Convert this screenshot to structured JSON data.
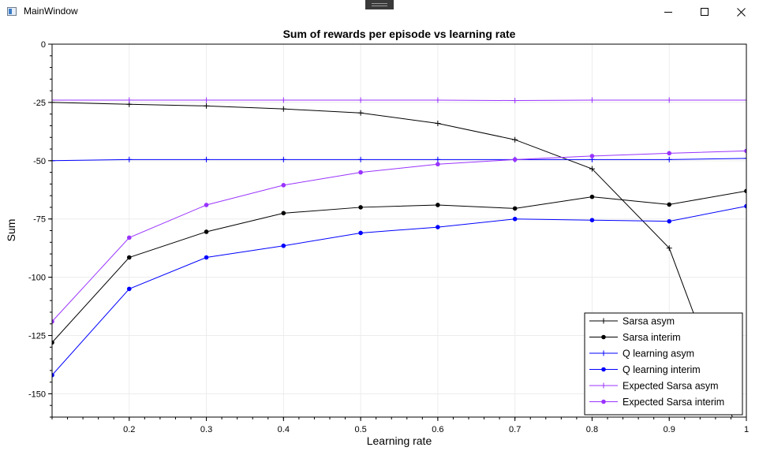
{
  "window": {
    "title": "MainWindow",
    "minimize_icon": "minimize-icon",
    "maximize_icon": "maximize-icon",
    "close_icon": "close-icon"
  },
  "chart_data": {
    "type": "line",
    "title": "Sum of rewards per episode vs learning rate",
    "xlabel": "Learning rate",
    "ylabel": "Sum",
    "xlim": [
      0.1,
      1.0
    ],
    "ylim": [
      -160,
      0
    ],
    "x_ticks": [
      0.2,
      0.3,
      0.4,
      0.5,
      0.6,
      0.7,
      0.8,
      0.9,
      1
    ],
    "x_tick_labels": [
      "0.2",
      "0.3",
      "0.4",
      "0.5",
      "0.6",
      "0.7",
      "0.8",
      "0.9",
      "1"
    ],
    "y_ticks": [
      0,
      -25,
      -50,
      -75,
      -100,
      -125,
      -150
    ],
    "y_tick_labels": [
      "0",
      "-25",
      "-50",
      "-75",
      "-100",
      "-125",
      "-150"
    ],
    "grid": true,
    "legend_position": "bottom-right",
    "x": [
      0.1,
      0.2,
      0.3,
      0.4,
      0.5,
      0.6,
      0.7,
      0.8,
      0.9,
      1.0
    ],
    "series": [
      {
        "name": "Sarsa asym",
        "color": "#000000",
        "marker": "plus",
        "values": [
          -25,
          -25.8,
          -26.5,
          -27.8,
          -29.5,
          -34,
          -41,
          -53.5,
          -87.5,
          -176
        ]
      },
      {
        "name": "Sarsa interim",
        "color": "#000000",
        "marker": "circle",
        "values": [
          -128,
          -91.5,
          -80.5,
          -72.5,
          -70,
          -69,
          -70.5,
          -65.5,
          -68.8,
          -63
        ]
      },
      {
        "name": "Q learning asym",
        "color": "#0000ff",
        "marker": "plus",
        "values": [
          -50,
          -49.5,
          -49.5,
          -49.5,
          -49.5,
          -49.5,
          -49.5,
          -49.5,
          -49.5,
          -49
        ]
      },
      {
        "name": "Q learning interim",
        "color": "#0000ff",
        "marker": "circle",
        "values": [
          -142,
          -105,
          -91.5,
          -86.5,
          -81,
          -78.5,
          -75,
          -75.5,
          -76,
          -69.5
        ]
      },
      {
        "name": "Expected Sarsa asym",
        "color": "#9933ff",
        "marker": "plus",
        "values": [
          -24,
          -24,
          -24,
          -24,
          -24,
          -24,
          -24.2,
          -24,
          -24,
          -24
        ]
      },
      {
        "name": "Expected Sarsa interim",
        "color": "#9933ff",
        "marker": "circle",
        "values": [
          -119,
          -83,
          -69,
          -60.5,
          -55,
          -51.5,
          -49.5,
          -48,
          -46.8,
          -45.8
        ]
      }
    ]
  }
}
